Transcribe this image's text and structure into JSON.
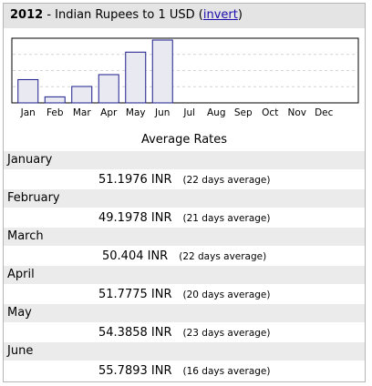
{
  "header": {
    "year": "2012",
    "separator": " - ",
    "description": "Indian Rupees to 1 USD",
    "invert_open": " (",
    "invert_label": "invert",
    "invert_close": ")"
  },
  "colors": {
    "bar_fill": "#e9e9f2",
    "bar_stroke": "#1c1c8c",
    "header_bg": "#e4e4e4",
    "row_bg": "#ebebeb"
  },
  "chart_data": {
    "type": "bar",
    "title": "",
    "xlabel": "",
    "ylabel": "",
    "categories": [
      "Jan",
      "Feb",
      "Mar",
      "Apr",
      "May",
      "Jun",
      "Jul",
      "Aug",
      "Sep",
      "Oct",
      "Nov",
      "Dec"
    ],
    "values": [
      51.1976,
      49.1978,
      50.404,
      51.7775,
      54.3858,
      55.7893,
      null,
      null,
      null,
      null,
      null,
      null
    ],
    "ylim": [
      48.5,
      56.0
    ],
    "grid": true,
    "legend": "none"
  },
  "averages": {
    "heading": "Average Rates",
    "rows": [
      {
        "month": "January",
        "value": "51.1976 INR",
        "days": "(22 days average)"
      },
      {
        "month": "February",
        "value": "49.1978 INR",
        "days": "(21 days average)"
      },
      {
        "month": "March",
        "value": "50.404 INR",
        "days": "(22 days average)"
      },
      {
        "month": "April",
        "value": "51.7775 INR",
        "days": "(20 days average)"
      },
      {
        "month": "May",
        "value": "54.3858 INR",
        "days": "(23 days average)"
      },
      {
        "month": "June",
        "value": "55.7893 INR",
        "days": "(16 days average)"
      }
    ]
  }
}
